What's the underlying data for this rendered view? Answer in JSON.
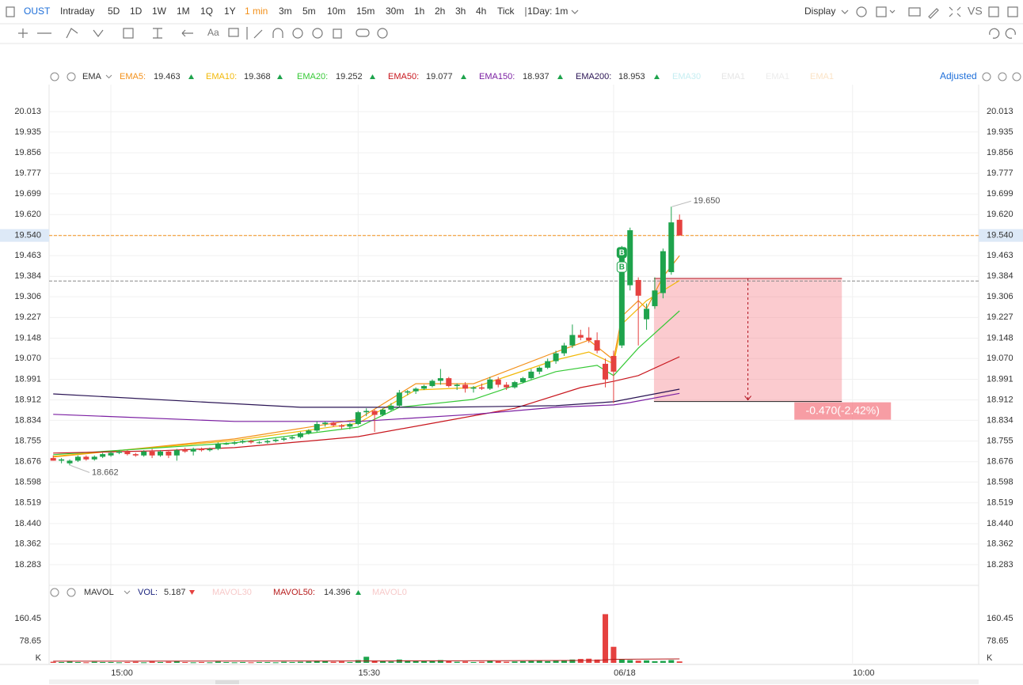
{
  "toolbar": {
    "symbol": "OUST",
    "periods": [
      "Intraday",
      "5D",
      "1D",
      "1W",
      "1M",
      "1Q",
      "1Y",
      "1 min",
      "3m",
      "5m",
      "10m",
      "15m",
      "30m",
      "1h",
      "2h",
      "3h",
      "4h",
      "Tick"
    ],
    "active_period": 7,
    "range": "1Day: 1m",
    "display": "Display",
    "compare": "VS",
    "font_tool": "Aa",
    "adjusted": "Adjusted"
  },
  "chart_data": [
    {
      "type": "candlestick",
      "indicator": "EMA",
      "up_color": "#1ea34c",
      "down_color": "#e5413f",
      "open": [
        18.69,
        18.68,
        18.67,
        18.68,
        18.695,
        18.685,
        18.695,
        18.7,
        18.71,
        18.715,
        18.705,
        18.7,
        18.715,
        18.7,
        18.715,
        18.7,
        18.72,
        18.715,
        18.725,
        18.72,
        18.725,
        18.745,
        18.745,
        18.75,
        18.755,
        18.75,
        18.75,
        18.755,
        18.76,
        18.765,
        18.77,
        18.785,
        18.795,
        18.82,
        18.825,
        18.815,
        18.81,
        18.82,
        18.865,
        18.87,
        18.855,
        18.875,
        18.89,
        18.94,
        18.945,
        18.955,
        18.965,
        18.985,
        18.995,
        18.965,
        18.97,
        18.955,
        18.96,
        18.955,
        18.99,
        18.97,
        18.96,
        18.98,
        18.995,
        19.02,
        19.035,
        19.06,
        19.09,
        19.12,
        19.16,
        19.15,
        19.14,
        19.05,
        19.08,
        19.12,
        19.35,
        19.37,
        19.22,
        19.27,
        19.32,
        19.4,
        19.6
      ],
      "high": [
        18.7,
        18.69,
        18.685,
        18.7,
        18.7,
        18.7,
        18.71,
        18.715,
        18.72,
        18.72,
        18.71,
        18.72,
        18.725,
        18.72,
        18.72,
        18.725,
        18.73,
        18.73,
        18.73,
        18.73,
        18.75,
        18.75,
        18.755,
        18.76,
        18.76,
        18.755,
        18.76,
        18.765,
        18.77,
        18.775,
        18.79,
        18.8,
        18.83,
        18.83,
        18.83,
        18.82,
        18.825,
        18.87,
        18.88,
        18.875,
        18.88,
        18.9,
        18.95,
        18.95,
        18.96,
        18.97,
        18.99,
        19.03,
        19.0,
        18.975,
        18.98,
        18.965,
        18.975,
        19.0,
        19.0,
        18.98,
        18.985,
        19.0,
        19.03,
        19.04,
        19.07,
        19.1,
        19.13,
        19.2,
        19.18,
        19.19,
        19.17,
        19.07,
        19.1,
        19.5,
        19.57,
        19.38,
        19.28,
        19.38,
        19.49,
        19.65,
        19.62
      ],
      "low": [
        18.68,
        18.67,
        18.662,
        18.675,
        18.68,
        18.68,
        18.69,
        18.695,
        18.705,
        18.7,
        18.695,
        18.695,
        18.69,
        18.695,
        18.69,
        18.68,
        18.71,
        18.7,
        18.715,
        18.715,
        18.72,
        18.74,
        18.74,
        18.745,
        18.745,
        18.745,
        18.745,
        18.75,
        18.755,
        18.76,
        18.765,
        18.78,
        18.79,
        18.81,
        18.81,
        18.8,
        18.8,
        18.815,
        18.85,
        18.79,
        18.85,
        18.87,
        18.885,
        18.93,
        18.935,
        18.95,
        18.96,
        18.97,
        18.96,
        18.95,
        18.94,
        18.94,
        18.95,
        18.95,
        18.96,
        18.95,
        18.955,
        18.975,
        18.99,
        19.01,
        19.03,
        19.05,
        19.08,
        19.11,
        19.14,
        19.13,
        19.09,
        18.96,
        18.9,
        19.11,
        19.33,
        19.12,
        19.18,
        19.26,
        19.3,
        19.39,
        19.54
      ],
      "close": [
        18.68,
        18.685,
        18.68,
        18.695,
        18.685,
        18.695,
        18.705,
        18.71,
        18.715,
        18.705,
        18.7,
        18.715,
        18.7,
        18.715,
        18.7,
        18.72,
        18.715,
        18.725,
        18.72,
        18.725,
        18.745,
        18.745,
        18.75,
        18.755,
        18.75,
        18.75,
        18.755,
        18.76,
        18.765,
        18.77,
        18.785,
        18.795,
        18.82,
        18.825,
        18.815,
        18.81,
        18.82,
        18.865,
        18.87,
        18.855,
        18.875,
        18.89,
        18.94,
        18.945,
        18.955,
        18.965,
        18.985,
        18.995,
        18.965,
        18.97,
        18.955,
        18.96,
        18.955,
        18.99,
        18.97,
        18.96,
        18.98,
        18.995,
        19.02,
        19.035,
        19.06,
        19.09,
        19.12,
        19.16,
        19.15,
        19.14,
        19.1,
        18.99,
        19.02,
        19.47,
        19.56,
        19.31,
        19.26,
        19.33,
        19.48,
        19.59,
        19.54
      ],
      "xlim": [
        -0.5,
        112.3
      ],
      "ylim": [
        18.204,
        20.116
      ],
      "yticks": [
        20.013,
        19.935,
        19.856,
        19.777,
        19.699,
        {
          "value": 19.62,
          "label": "19.620"
        },
        {
          "value": 19.54,
          "label": "19.540"
        },
        19.463,
        19.384,
        19.306,
        19.227,
        19.148,
        {
          "value": 19.07,
          "label": "19.070"
        },
        18.991,
        18.912,
        18.834,
        18.755,
        18.676,
        18.598,
        18.519,
        {
          "value": 18.44,
          "label": "18.440"
        },
        18.362,
        18.283
      ],
      "xticks": [
        {
          "value": 7,
          "label": "15:00"
        },
        {
          "value": 37,
          "label": "15:30"
        },
        {
          "value": 68,
          "label": "06/18"
        },
        {
          "value": 97,
          "label": "10:00"
        }
      ],
      "grid": true,
      "series": [
        {
          "name": "EMA5:",
          "color": "#f39019",
          "x": [
            0,
            22,
            37,
            44,
            51,
            61,
            65,
            68,
            69,
            71,
            72,
            74,
            76
          ],
          "values": [
            18.694,
            18.763,
            18.838,
            18.974,
            18.974,
            19.095,
            19.14,
            19.065,
            19.231,
            19.291,
            19.261,
            19.382,
            19.463
          ]
        },
        {
          "name": "EMA10:",
          "color": "#f2b807",
          "x": [
            0,
            22,
            37,
            44,
            51,
            61,
            65,
            68,
            69,
            72,
            76
          ],
          "values": [
            18.697,
            18.757,
            18.823,
            18.95,
            18.959,
            19.065,
            19.095,
            19.05,
            19.201,
            19.291,
            19.368
          ]
        },
        {
          "name": "EMA20:",
          "color": "#36c936",
          "x": [
            0,
            22,
            37,
            42,
            51,
            61,
            66,
            68,
            71,
            76
          ],
          "values": [
            18.703,
            18.748,
            18.808,
            18.884,
            18.914,
            19.02,
            19.044,
            19.005,
            19.11,
            19.252
          ]
        },
        {
          "name": "EMA50:",
          "color": "#c8161d",
          "x": [
            0,
            13,
            22,
            37,
            46,
            56,
            64,
            68,
            71,
            76
          ],
          "values": [
            18.709,
            18.718,
            18.73,
            18.772,
            18.823,
            18.88,
            18.959,
            18.983,
            19.005,
            19.077
          ]
        },
        {
          "name": "EMA150:",
          "color": "#7b1fa2",
          "x": [
            0,
            22,
            37,
            51,
            61,
            68,
            70,
            76
          ],
          "values": [
            18.857,
            18.83,
            18.83,
            18.857,
            18.884,
            18.893,
            18.902,
            18.937
          ]
        },
        {
          "name": "EMA200:",
          "color": "#2a1454",
          "x": [
            0,
            30,
            47,
            61,
            68,
            76
          ],
          "values": [
            18.935,
            18.884,
            18.884,
            18.89,
            18.905,
            18.953
          ]
        }
      ],
      "inactive_series": [
        {
          "name": "EMA30",
          "color": "#c6eef2"
        },
        {
          "name": "EMA1",
          "color": "#e6e6e6"
        },
        {
          "name": "EMA1",
          "color": "#ececec"
        },
        {
          "name": "EMA1",
          "color": "#fbe3c6"
        }
      ],
      "last_price": {
        "value": 19.54,
        "color": "#f39019"
      },
      "hlines": [
        {
          "value": 19.366,
          "color": "#888888"
        }
      ],
      "annotations": [
        {
          "x": 75,
          "value": 19.65,
          "label": "19.650"
        },
        {
          "x": 2,
          "value": 18.662,
          "label": "18.662"
        }
      ],
      "trades": [
        {
          "x": 69,
          "value": 19.473,
          "label": "B",
          "filled": true
        },
        {
          "x": 69,
          "value": 19.418,
          "label": "B",
          "filled": false
        }
      ],
      "measure": {
        "x": [
          72.9,
          95.7
        ],
        "y": [
          19.376,
          18.906
        ],
        "label": "-0.470(-2.42%)",
        "color": "#f47c86"
      }
    },
    {
      "type": "bar",
      "indicator": "MAVOL",
      "xlim": [
        -0.5,
        112.3
      ],
      "ylim": [
        0,
        223
      ],
      "yticks": [
        {
          "value": 0,
          "label": "K"
        },
        160.45,
        78.65
      ],
      "series": [
        {
          "name": "VOL:",
          "color": "#1a237e",
          "values": [
            4,
            3,
            5,
            3,
            2,
            4,
            3,
            3,
            2,
            3,
            4,
            2,
            5,
            3,
            4,
            6,
            3,
            2,
            3,
            2,
            5,
            3,
            2,
            3,
            2,
            3,
            3,
            2,
            4,
            3,
            4,
            5,
            8,
            6,
            4,
            5,
            3,
            10,
            22,
            8,
            6,
            5,
            12,
            9,
            7,
            6,
            8,
            10,
            6,
            4,
            5,
            3,
            4,
            8,
            6,
            4,
            5,
            6,
            7,
            8,
            6,
            9,
            10,
            12,
            14,
            15,
            12,
            176,
            58,
            12,
            10,
            8,
            9,
            6,
            7,
            10,
            5.187
          ]
        },
        {
          "name": "MAVOL50:",
          "color": "#b71c1c",
          "x": [
            0,
            40,
            66,
            68,
            76
          ],
          "values": [
            6,
            7,
            9,
            13,
            14.396
          ]
        }
      ],
      "inactive_series": [
        {
          "name": "MAVOL30",
          "color": "#f7c9c9"
        },
        {
          "name": "MAVOL0",
          "color": "#f7c9c9"
        }
      ]
    }
  ]
}
